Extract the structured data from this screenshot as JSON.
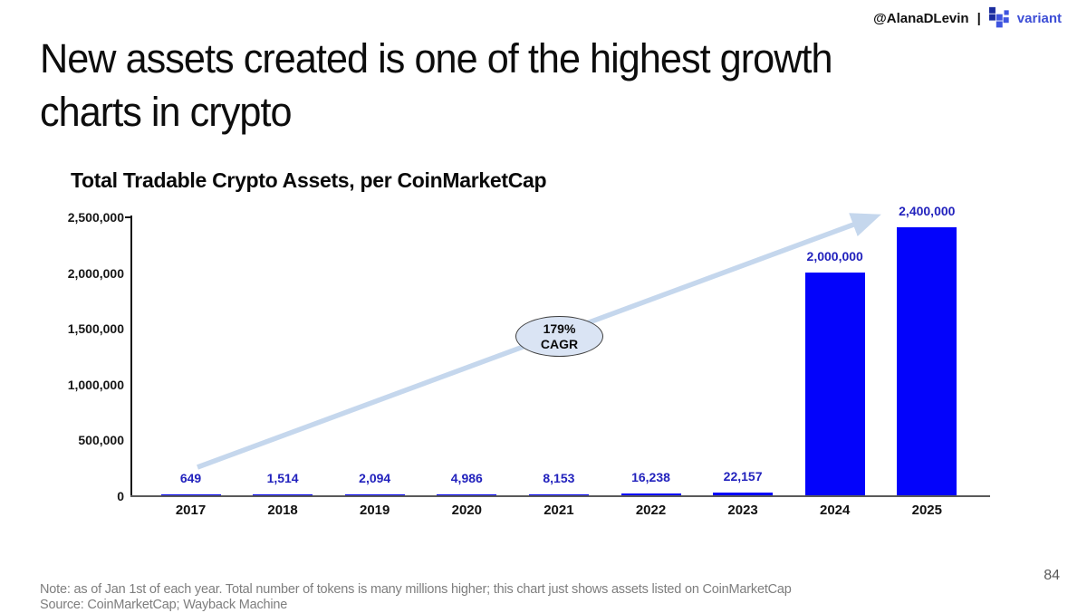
{
  "header": {
    "handle": "@AlanaDLevin",
    "separator": "|",
    "brand": "variant"
  },
  "title": {
    "line1": "New assets created is one of the highest growth",
    "line2": "charts in crypto"
  },
  "chart_data": {
    "type": "bar",
    "title": "Total Tradable Crypto Assets, per CoinMarketCap",
    "categories": [
      "2017",
      "2018",
      "2019",
      "2020",
      "2021",
      "2022",
      "2023",
      "2024",
      "2025"
    ],
    "values": [
      649,
      1514,
      2094,
      4986,
      8153,
      16238,
      22157,
      2000000,
      2400000
    ],
    "value_labels": [
      "649",
      "1,514",
      "2,094",
      "4,986",
      "8,153",
      "16,238",
      "22,157",
      "2,000,000",
      "2,400,000"
    ],
    "y_ticks": [
      {
        "label": "0",
        "value": 0
      },
      {
        "label": "500,000",
        "value": 500000
      },
      {
        "label": "1,000,000",
        "value": 1000000
      },
      {
        "label": "1,500,000",
        "value": 1500000
      },
      {
        "label": "2,000,000",
        "value": 2000000
      },
      {
        "label": "2,500,000",
        "value": 2500000
      }
    ],
    "ylim": [
      0,
      2500000
    ],
    "grid": false,
    "legend": false,
    "annotation": {
      "value": "179%",
      "metric": "CAGR"
    }
  },
  "colors": {
    "bar_blue": "#0303fb",
    "value_label_blue": "#2222bd",
    "arrow_blue": "#c5d7ed",
    "ellipse_fill": "#dae4f4",
    "brand_blue": "#3d4ed6",
    "logo_navy": "#1b2d9e",
    "logo_blue": "#3f55e0"
  },
  "footer": {
    "note": "Note: as of Jan 1st of each year. Total number of tokens is many millions higher; this chart just shows assets listed on CoinMarketCap",
    "source": "Source: CoinMarketCap; Wayback Machine",
    "page": "84"
  }
}
